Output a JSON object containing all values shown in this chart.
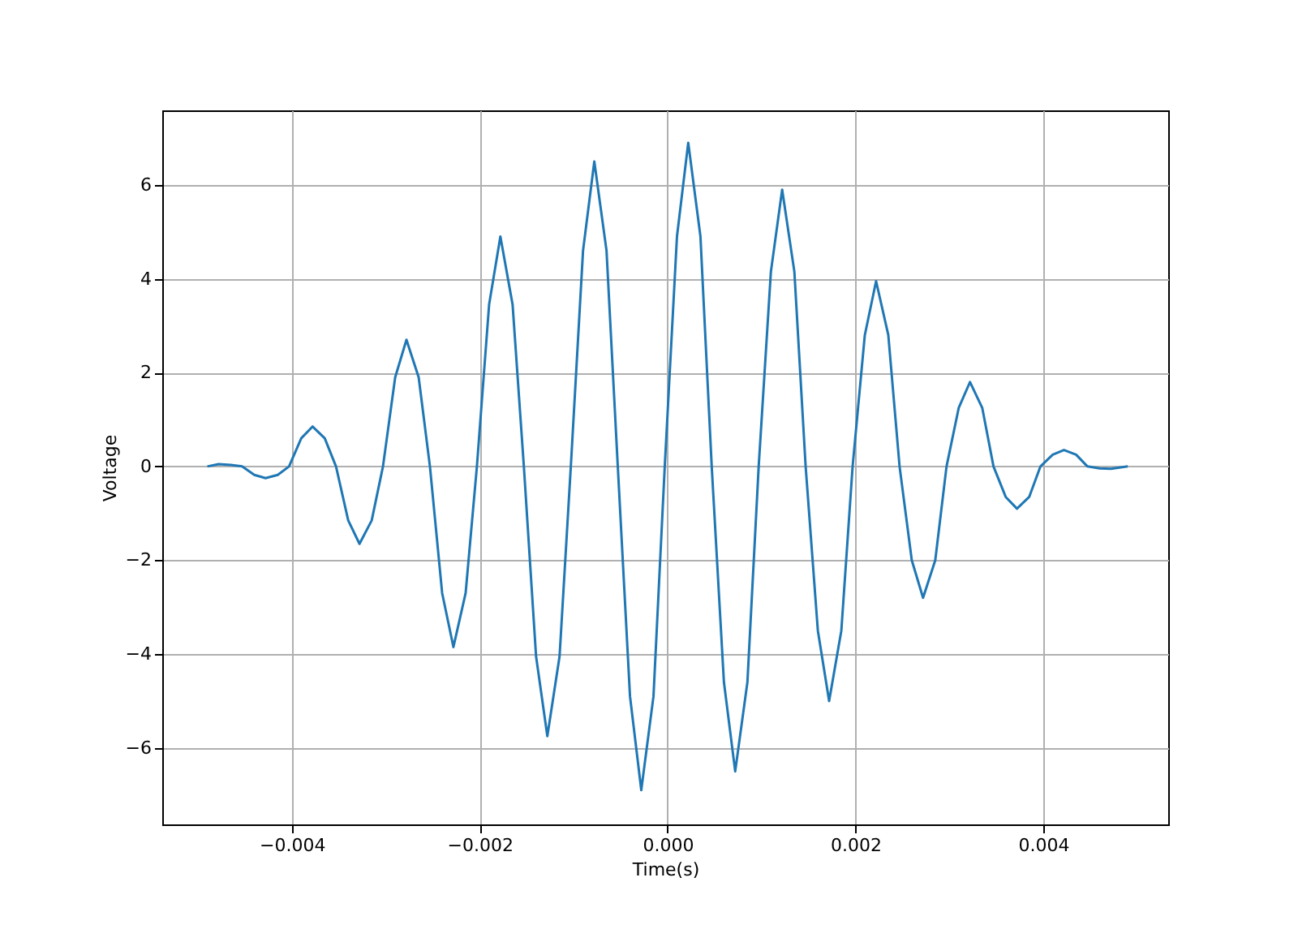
{
  "chart_data": {
    "type": "line",
    "xlabel": "Time(s)",
    "ylabel": "Voltage",
    "x": [
      -0.0049,
      -0.00478,
      -0.00465,
      -0.00453,
      -0.0044,
      -0.00428,
      -0.00415,
      -0.00403,
      -0.0039,
      -0.00378,
      -0.00365,
      -0.00353,
      -0.0034,
      -0.00328,
      -0.00315,
      -0.00303,
      -0.0029,
      -0.00278,
      -0.00265,
      -0.00253,
      -0.0024,
      -0.00228,
      -0.00215,
      -0.00203,
      -0.0019,
      -0.00178,
      -0.00165,
      -0.00153,
      -0.0014,
      -0.00128,
      -0.00115,
      -0.00103,
      -0.0009,
      -0.00078,
      -0.00065,
      -0.00053,
      -0.0004,
      -0.00028,
      -0.00015,
      -3e-05,
      0.0001,
      0.00022,
      0.00035,
      0.00047,
      0.0006,
      0.00072,
      0.00085,
      0.00097,
      0.0011,
      0.00122,
      0.00135,
      0.00147,
      0.0016,
      0.00172,
      0.00185,
      0.00197,
      0.0021,
      0.00222,
      0.00235,
      0.00247,
      0.0026,
      0.00272,
      0.00285,
      0.00297,
      0.0031,
      0.00322,
      0.00335,
      0.00347,
      0.0036,
      0.00372,
      0.00385,
      0.00397,
      0.0041,
      0.00422,
      0.00435,
      0.00447,
      0.0046,
      0.00472,
      0.0049
    ],
    "series": [
      {
        "color": "#1f77b4",
        "values": [
          0,
          0.05,
          0.03,
          0,
          -0.18,
          -0.25,
          -0.18,
          0,
          0.6,
          0.85,
          0.6,
          0,
          -1.15,
          -1.65,
          -1.15,
          0,
          1.9,
          2.7,
          1.9,
          0,
          -2.7,
          -3.85,
          -2.7,
          0,
          3.45,
          4.9,
          3.45,
          0,
          -4.05,
          -5.75,
          -4.05,
          0,
          4.6,
          6.5,
          4.6,
          0,
          -4.9,
          -6.9,
          -4.9,
          0,
          4.9,
          6.9,
          4.9,
          0,
          -4.6,
          -6.5,
          -4.6,
          0,
          4.15,
          5.9,
          4.15,
          0,
          -3.5,
          -5.0,
          -3.5,
          0,
          2.8,
          3.95,
          2.8,
          0,
          -2.0,
          -2.8,
          -2.0,
          0,
          1.25,
          1.8,
          1.25,
          0,
          -0.65,
          -0.9,
          -0.65,
          0,
          0.25,
          0.35,
          0.25,
          0,
          -0.04,
          -0.05,
          0
        ]
      }
    ],
    "xlim": [
      -0.00538,
      0.00533
    ],
    "ylim": [
      -7.63,
      7.59
    ],
    "xticks": [
      {
        "value": -0.004,
        "label": "−0.004"
      },
      {
        "value": -0.002,
        "label": "−0.002"
      },
      {
        "value": 0,
        "label": "0.000"
      },
      {
        "value": 0.002,
        "label": "0.002"
      },
      {
        "value": 0.004,
        "label": "0.004"
      }
    ],
    "yticks": [
      {
        "value": -6,
        "label": "−6"
      },
      {
        "value": -4,
        "label": "−4"
      },
      {
        "value": -2,
        "label": "−2"
      },
      {
        "value": 0,
        "label": "0"
      },
      {
        "value": 2,
        "label": "2"
      },
      {
        "value": 4,
        "label": "4"
      },
      {
        "value": 6,
        "label": "6"
      }
    ],
    "grid": true,
    "legend": false,
    "line_style": "solid",
    "marker": "none"
  }
}
